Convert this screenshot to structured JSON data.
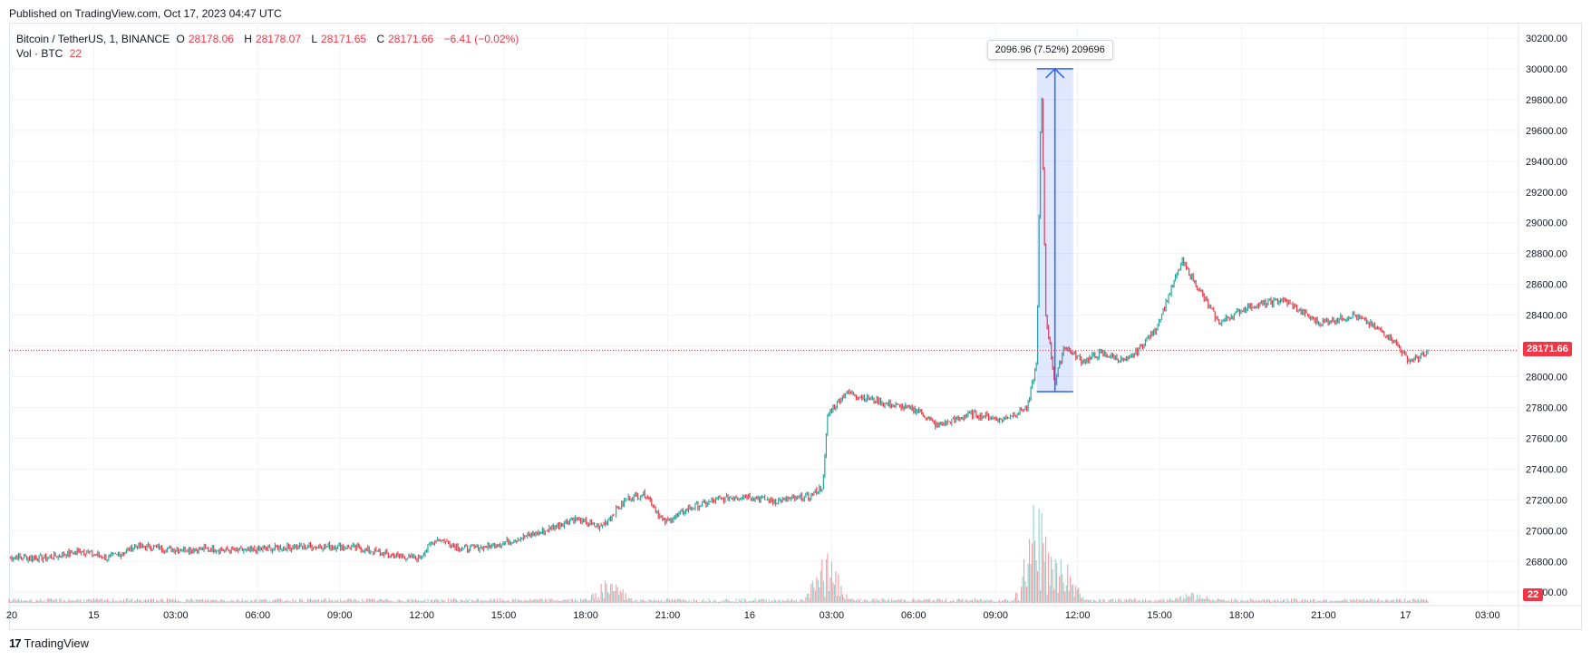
{
  "header": {
    "published": "Published on TradingView.com, Oct 17, 2023 04:47 UTC"
  },
  "legend": {
    "symbol": "Bitcoin / TetherUS, 1, BINANCE",
    "open_label": "O",
    "open": "28178.06",
    "high_label": "H",
    "high": "28178.07",
    "low_label": "L",
    "low": "28171.65",
    "close_label": "C",
    "close": "28171.66",
    "change": "−6.41 (−0.02%)",
    "vol_label": "Vol · BTC",
    "vol_value": "22"
  },
  "measure": {
    "label": "2096.96 (7.52%) 209696"
  },
  "price_badge": "28171.66",
  "vol_badge": "22",
  "footer": {
    "brand": "TradingView",
    "logo_icon": "tradingview-logo-icon"
  },
  "colors": {
    "up": "#26a69a",
    "down": "#f23645",
    "measure": "#2962ff",
    "grid": "#f0f3fa"
  },
  "chart_data": {
    "type": "candlestick",
    "title": "Bitcoin / TetherUS, 1, BINANCE",
    "ylim": [
      26560,
      30300
    ],
    "y_ticks": [
      "30200.00",
      "30000.00",
      "29800.00",
      "29600.00",
      "29400.00",
      "29200.00",
      "29000.00",
      "28800.00",
      "28600.00",
      "28400.00",
      "28200.00",
      "28000.00",
      "27800.00",
      "27600.00",
      "27400.00",
      "27200.00",
      "27000.00",
      "26800.00",
      "26600.00"
    ],
    "x_ticks": [
      "20",
      "15",
      "03:00",
      "06:00",
      "09:00",
      "12:00",
      "15:00",
      "18:00",
      "21:00",
      "16",
      "03:00",
      "06:00",
      "09:00",
      "12:00",
      "15:00",
      "18:00",
      "21:00",
      "17",
      "03:00"
    ],
    "grid": true,
    "price_path": [
      [
        0,
        26830
      ],
      [
        40,
        26820
      ],
      [
        80,
        26870
      ],
      [
        110,
        26820
      ],
      [
        140,
        26900
      ],
      [
        180,
        26880
      ],
      [
        220,
        26880
      ],
      [
        260,
        26870
      ],
      [
        300,
        26890
      ],
      [
        340,
        26900
      ],
      [
        380,
        26890
      ],
      [
        420,
        26840
      ],
      [
        450,
        26820
      ],
      [
        470,
        26950
      ],
      [
        500,
        26880
      ],
      [
        530,
        26900
      ],
      [
        560,
        26950
      ],
      [
        590,
        27000
      ],
      [
        620,
        27080
      ],
      [
        650,
        27020
      ],
      [
        680,
        27210
      ],
      [
        700,
        27240
      ],
      [
        720,
        27050
      ],
      [
        750,
        27150
      ],
      [
        780,
        27200
      ],
      [
        810,
        27230
      ],
      [
        840,
        27190
      ],
      [
        880,
        27220
      ],
      [
        895,
        27290
      ],
      [
        900,
        27750
      ],
      [
        920,
        27900
      ],
      [
        960,
        27830
      ],
      [
        1000,
        27780
      ],
      [
        1020,
        27680
      ],
      [
        1060,
        27760
      ],
      [
        1090,
        27720
      ],
      [
        1120,
        27800
      ],
      [
        1130,
        28100
      ],
      [
        1135,
        29950
      ],
      [
        1140,
        28400
      ],
      [
        1150,
        27950
      ],
      [
        1160,
        28200
      ],
      [
        1180,
        28100
      ],
      [
        1200,
        28150
      ],
      [
        1230,
        28100
      ],
      [
        1260,
        28300
      ],
      [
        1290,
        28750
      ],
      [
        1310,
        28550
      ],
      [
        1330,
        28350
      ],
      [
        1360,
        28450
      ],
      [
        1400,
        28500
      ],
      [
        1440,
        28350
      ],
      [
        1480,
        28400
      ],
      [
        1520,
        28250
      ],
      [
        1540,
        28100
      ],
      [
        1560,
        28150
      ]
    ],
    "volume_spikes": [
      [
        900,
        0.45
      ],
      [
        1130,
        0.85
      ],
      [
        1160,
        0.35
      ],
      [
        660,
        0.2
      ],
      [
        1300,
        0.08
      ]
    ],
    "measure_range": {
      "from_price": 27903.04,
      "to_price": 30000.0,
      "change": "2096.96 (7.52%)"
    },
    "last_price": 28171.66
  }
}
